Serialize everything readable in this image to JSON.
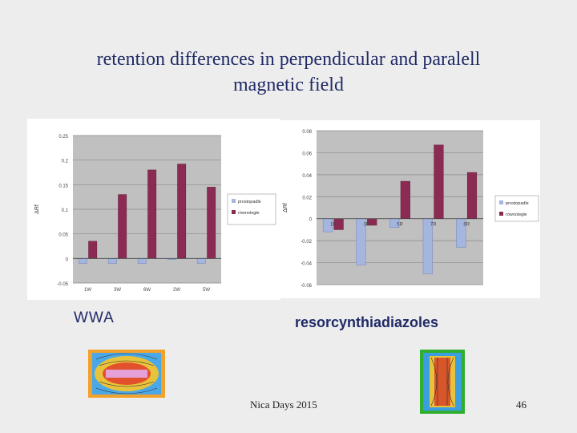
{
  "slide": {
    "title_line1": "retention differences in perpendicular and paralell",
    "title_line2": "magnetic field",
    "caption_left": "WWA",
    "caption_right": "resorcynthiadiazoles",
    "footer": "Nica Days 2015",
    "page_number": "46"
  },
  "colors": {
    "series1": "#a4b6e0",
    "series2": "#8b2b54",
    "plot_bg": "#c0c0c0"
  },
  "chart_data": [
    {
      "type": "bar",
      "categories": [
        "1W",
        "3W",
        "6W",
        "2W",
        "5W"
      ],
      "ylabel": "ΔRf",
      "ylim": [
        -0.05,
        0.25
      ],
      "yticks": [
        -0.05,
        0,
        0.05,
        0.1,
        0.15,
        0.2,
        0.25
      ],
      "tick_labels": [
        "-0.05",
        "0",
        "0.05",
        "0.1",
        "0.15",
        "0.2",
        "0.25"
      ],
      "series": [
        {
          "name": "prostopadle",
          "values": [
            -0.01,
            -0.01,
            -0.01,
            -0.002,
            -0.01
          ]
        },
        {
          "name": "równoległe",
          "values": [
            0.035,
            0.13,
            0.18,
            0.192,
            0.145
          ]
        }
      ]
    },
    {
      "type": "bar",
      "categories": [
        "1R",
        "3R",
        "5R",
        "7R",
        "6R"
      ],
      "ylabel": "ΔRf",
      "ylim": [
        -0.06,
        0.08
      ],
      "yticks": [
        -0.06,
        -0.04,
        -0.02,
        0,
        0.02,
        0.04,
        0.06,
        0.08
      ],
      "tick_labels": [
        "-0.06",
        "-0.04",
        "-0.02",
        "0",
        "0.02",
        "0.04",
        "0.06",
        "0.08"
      ],
      "series": [
        {
          "name": "prostopadle",
          "values": [
            -0.012,
            -0.042,
            -0.008,
            -0.05,
            -0.026
          ]
        },
        {
          "name": "równoległe",
          "values": [
            -0.01,
            -0.006,
            0.034,
            0.067,
            0.042
          ]
        }
      ]
    }
  ]
}
